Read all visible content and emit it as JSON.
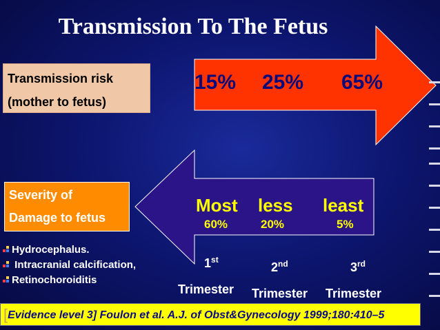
{
  "title": "Transmission To The Fetus",
  "transmission_box": {
    "line1": "Transmission risk",
    "line2": "(mother to fetus)"
  },
  "transmission_percents": [
    "15%",
    "25%",
    "65%"
  ],
  "severity_box": {
    "line1": "Severity of",
    "line2": "Damage to fetus"
  },
  "severity_labels": [
    "Most",
    "less",
    "least"
  ],
  "severity_percents": [
    "60%",
    "20%",
    "5%"
  ],
  "bullets": [
    "Hydrocephalus.",
    " Intracranial calcification,",
    "Retinochoroiditis"
  ],
  "trimesters": [
    {
      "num": "1",
      "sup": "st",
      "label": "Trimester"
    },
    {
      "num": "2",
      "sup": "nd",
      "label": "Trimester"
    },
    {
      "num": "3",
      "sup": "rd",
      "label": "Trimester"
    }
  ],
  "footer": {
    "bracket": "[",
    "text": "Evidence level 3] Foulon  et al. A.J. of Obst&Gynecology 1999;180:410–5"
  },
  "colors": {
    "background": "#0d1670",
    "arrow_right": "#ff3300",
    "arrow_left": "#2a1488",
    "highlight": "#ffff00",
    "box_orange": "#ff8c00",
    "box_peach": "#f0c8a8"
  }
}
